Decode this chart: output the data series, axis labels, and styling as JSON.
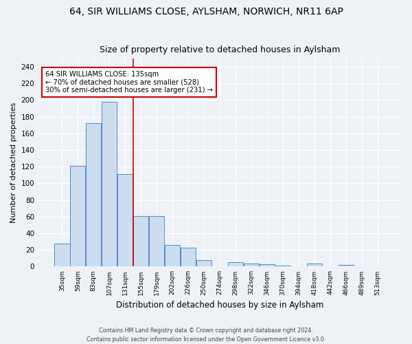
{
  "title1": "64, SIR WILLIAMS CLOSE, AYLSHAM, NORWICH, NR11 6AP",
  "title2": "Size of property relative to detached houses in Aylsham",
  "xlabel": "Distribution of detached houses by size in Aylsham",
  "ylabel": "Number of detached properties",
  "bin_labels": [
    "35sqm",
    "59sqm",
    "83sqm",
    "107sqm",
    "131sqm",
    "155sqm",
    "179sqm",
    "202sqm",
    "226sqm",
    "250sqm",
    "274sqm",
    "298sqm",
    "322sqm",
    "346sqm",
    "370sqm",
    "394sqm",
    "418sqm",
    "442sqm",
    "466sqm",
    "489sqm",
    "513sqm"
  ],
  "bar_heights": [
    28,
    121,
    172,
    198,
    111,
    61,
    61,
    26,
    23,
    8,
    0,
    5,
    4,
    3,
    1,
    0,
    4,
    0,
    2,
    0,
    0
  ],
  "bar_color": "#ccddef",
  "bar_edge_color": "#5588cc",
  "vline_color": "#cc0000",
  "annotation_line1": "64 SIR WILLIAMS CLOSE: 135sqm",
  "annotation_line2": "← 70% of detached houses are smaller (528)",
  "annotation_line3": "30% of semi-detached houses are larger (231) →",
  "annotation_box_color": "white",
  "annotation_box_edge": "#cc0000",
  "ylim": [
    0,
    250
  ],
  "yticks": [
    0,
    20,
    40,
    60,
    80,
    100,
    120,
    140,
    160,
    180,
    200,
    220,
    240
  ],
  "footer1": "Contains HM Land Registry data © Crown copyright and database right 2024.",
  "footer2": "Contains public sector information licensed under the Open Government Licence v3.0.",
  "bg_color": "#eef2f7",
  "grid_color": "#ffffff",
  "title1_fontsize": 10,
  "title2_fontsize": 9,
  "ylabel_fontsize": 8,
  "xlabel_fontsize": 8.5
}
